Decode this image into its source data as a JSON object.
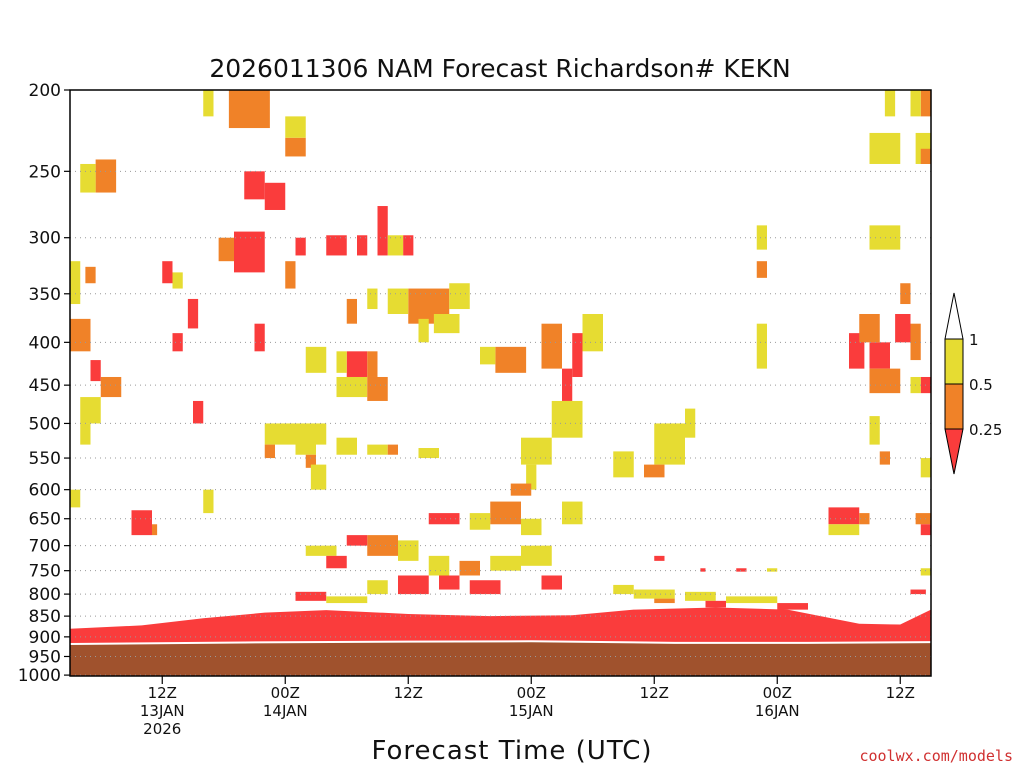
{
  "chart_data": {
    "type": "heatmap",
    "title": "2026011306 NAM Forecast Richardson# KEKN",
    "xlabel": "Forecast Time (UTC)",
    "ylabel": "",
    "ylim": [
      1000,
      200
    ],
    "xlim_hours": [
      3,
      87
    ],
    "grid": "dotted horizontal at labeled pressure levels",
    "y_ticks": [
      "200",
      "250",
      "300",
      "350",
      "400",
      "450",
      "500",
      "550",
      "600",
      "650",
      "700",
      "750",
      "800",
      "850",
      "900",
      "950",
      "1000"
    ],
    "x_ticks": [
      {
        "hour": 12,
        "line1": "12Z",
        "line2": "13JAN",
        "line3": "2026"
      },
      {
        "hour": 24,
        "line1": "00Z",
        "line2": "14JAN",
        "line3": ""
      },
      {
        "hour": 36,
        "line1": "12Z",
        "line2": "",
        "line3": ""
      },
      {
        "hour": 48,
        "line1": "00Z",
        "line2": "15JAN",
        "line3": ""
      },
      {
        "hour": 60,
        "line1": "12Z",
        "line2": "",
        "line3": ""
      },
      {
        "hour": 72,
        "line1": "00Z",
        "line2": "16JAN",
        "line3": ""
      },
      {
        "hour": 84,
        "line1": "12Z",
        "line2": "",
        "line3": ""
      }
    ],
    "legend": {
      "placement": "right",
      "entries": [
        {
          "label": "1",
          "color": "#ffffff"
        },
        {
          "label": "0.5",
          "color": "#e6dc32"
        },
        {
          "label": "0.25",
          "color": "#f08228"
        },
        {
          "label": "",
          "color": "#fa3c3c"
        }
      ]
    },
    "colors": {
      "ri_lt_0_25": "#fa3c3c",
      "ri_0_25_0_5": "#f08228",
      "ri_0_5_1": "#e6dc32",
      "ground": "#a0522d"
    },
    "surface_pressure": [
      {
        "hour": 3,
        "p": 918
      },
      {
        "hour": 20,
        "p": 914
      },
      {
        "hour": 36,
        "p": 912
      },
      {
        "hour": 48,
        "p": 911
      },
      {
        "hour": 62,
        "p": 915
      },
      {
        "hour": 75,
        "p": 915
      },
      {
        "hour": 87,
        "p": 913
      }
    ],
    "low_level_red_top": [
      {
        "hour": 3,
        "p": 880
      },
      {
        "hour": 10,
        "p": 872
      },
      {
        "hour": 16,
        "p": 855
      },
      {
        "hour": 22,
        "p": 842
      },
      {
        "hour": 28,
        "p": 836
      },
      {
        "hour": 36,
        "p": 845
      },
      {
        "hour": 44,
        "p": 850
      },
      {
        "hour": 52,
        "p": 848
      },
      {
        "hour": 58,
        "p": 835
      },
      {
        "hour": 66,
        "p": 830
      },
      {
        "hour": 73,
        "p": 835
      },
      {
        "hour": 80,
        "p": 868
      },
      {
        "hour": 84,
        "p": 870
      },
      {
        "hour": 87,
        "p": 835
      }
    ],
    "cells": [
      {
        "h0": 18.5,
        "h1": 22.5,
        "p0": 200,
        "p1": 222,
        "cat": "ri_0_25_0_5"
      },
      {
        "h0": 22.0,
        "h1": 24.0,
        "p0": 258,
        "p1": 278,
        "cat": "ri_lt_0_25"
      },
      {
        "h0": 20.0,
        "h1": 22.0,
        "p0": 250,
        "p1": 270,
        "cat": "ri_lt_0_25"
      },
      {
        "h0": 19.0,
        "h1": 22.0,
        "p0": 295,
        "p1": 330,
        "cat": "ri_lt_0_25"
      },
      {
        "h0": 17.5,
        "h1": 19.0,
        "p0": 300,
        "p1": 320,
        "cat": "ri_0_25_0_5"
      },
      {
        "h0": 5.5,
        "h1": 7.5,
        "p0": 242,
        "p1": 265,
        "cat": "ri_0_25_0_5"
      },
      {
        "h0": 4.0,
        "h1": 5.5,
        "p0": 245,
        "p1": 265,
        "cat": "ri_0_5_1"
      },
      {
        "h0": 24.0,
        "h1": 26.0,
        "p0": 228,
        "p1": 240,
        "cat": "ri_0_25_0_5"
      },
      {
        "h0": 24.0,
        "h1": 26.0,
        "p0": 215,
        "p1": 228,
        "cat": "ri_0_5_1"
      },
      {
        "h0": 16.0,
        "h1": 17.0,
        "p0": 200,
        "p1": 215,
        "cat": "ri_0_5_1"
      },
      {
        "h0": 25.0,
        "h1": 26.0,
        "p0": 300,
        "p1": 315,
        "cat": "ri_lt_0_25"
      },
      {
        "h0": 24.0,
        "h1": 25.0,
        "p0": 320,
        "p1": 345,
        "cat": "ri_0_25_0_5"
      },
      {
        "h0": 28.0,
        "h1": 30.0,
        "p0": 298,
        "p1": 315,
        "cat": "ri_lt_0_25"
      },
      {
        "h0": 31.0,
        "h1": 32.0,
        "p0": 298,
        "p1": 315,
        "cat": "ri_lt_0_25"
      },
      {
        "h0": 33.0,
        "h1": 34.0,
        "p0": 275,
        "p1": 315,
        "cat": "ri_lt_0_25"
      },
      {
        "h0": 35.5,
        "h1": 36.5,
        "p0": 298,
        "p1": 315,
        "cat": "ri_lt_0_25"
      },
      {
        "h0": 34.0,
        "h1": 35.5,
        "p0": 298,
        "p1": 315,
        "cat": "ri_0_5_1"
      },
      {
        "h0": 32.0,
        "h1": 33.0,
        "p0": 345,
        "p1": 365,
        "cat": "ri_0_5_1"
      },
      {
        "h0": 30.0,
        "h1": 31.0,
        "p0": 355,
        "p1": 380,
        "cat": "ri_0_25_0_5"
      },
      {
        "h0": 36.0,
        "h1": 40.0,
        "p0": 345,
        "p1": 380,
        "cat": "ri_0_25_0_5"
      },
      {
        "h0": 34.0,
        "h1": 36.0,
        "p0": 345,
        "p1": 370,
        "cat": "ri_0_5_1"
      },
      {
        "h0": 40.0,
        "h1": 42.0,
        "p0": 340,
        "p1": 365,
        "cat": "ri_0_5_1"
      },
      {
        "h0": 37.0,
        "h1": 38.0,
        "p0": 375,
        "p1": 400,
        "cat": "ri_0_5_1"
      },
      {
        "h0": 38.5,
        "h1": 41.0,
        "p0": 370,
        "p1": 390,
        "cat": "ri_0_5_1"
      },
      {
        "h0": 44.5,
        "h1": 47.5,
        "p0": 405,
        "p1": 435,
        "cat": "ri_0_25_0_5"
      },
      {
        "h0": 43.0,
        "h1": 44.5,
        "p0": 405,
        "p1": 425,
        "cat": "ri_0_5_1"
      },
      {
        "h0": 26.0,
        "h1": 28.0,
        "p0": 405,
        "p1": 435,
        "cat": "ri_0_5_1"
      },
      {
        "h0": 30.0,
        "h1": 32.0,
        "p0": 410,
        "p1": 440,
        "cat": "ri_lt_0_25"
      },
      {
        "h0": 29.0,
        "h1": 30.0,
        "p0": 410,
        "p1": 435,
        "cat": "ri_0_5_1"
      },
      {
        "h0": 32.0,
        "h1": 33.0,
        "p0": 410,
        "p1": 440,
        "cat": "ri_0_25_0_5"
      },
      {
        "h0": 29.0,
        "h1": 32.0,
        "p0": 440,
        "p1": 465,
        "cat": "ri_0_5_1"
      },
      {
        "h0": 32.0,
        "h1": 34.0,
        "p0": 440,
        "p1": 470,
        "cat": "ri_0_25_0_5"
      },
      {
        "h0": 3.0,
        "h1": 5.0,
        "p0": 375,
        "p1": 410,
        "cat": "ri_0_25_0_5"
      },
      {
        "h0": 3.0,
        "h1": 4.0,
        "p0": 320,
        "p1": 360,
        "cat": "ri_0_5_1"
      },
      {
        "h0": 4.5,
        "h1": 5.5,
        "p0": 325,
        "p1": 340,
        "cat": "ri_0_25_0_5"
      },
      {
        "h0": 5.0,
        "h1": 6.0,
        "p0": 420,
        "p1": 445,
        "cat": "ri_lt_0_25"
      },
      {
        "h0": 6.0,
        "h1": 8.0,
        "p0": 440,
        "p1": 465,
        "cat": "ri_0_25_0_5"
      },
      {
        "h0": 4.0,
        "h1": 6.0,
        "p0": 465,
        "p1": 500,
        "cat": "ri_0_5_1"
      },
      {
        "h0": 4.0,
        "h1": 5.0,
        "p0": 500,
        "p1": 530,
        "cat": "ri_0_5_1"
      },
      {
        "h0": 12.0,
        "h1": 13.0,
        "p0": 320,
        "p1": 340,
        "cat": "ri_lt_0_25"
      },
      {
        "h0": 13.0,
        "h1": 14.0,
        "p0": 330,
        "p1": 345,
        "cat": "ri_0_5_1"
      },
      {
        "h0": 14.5,
        "h1": 15.5,
        "p0": 355,
        "p1": 385,
        "cat": "ri_lt_0_25"
      },
      {
        "h0": 13.0,
        "h1": 14.0,
        "p0": 390,
        "p1": 410,
        "cat": "ri_lt_0_25"
      },
      {
        "h0": 15.0,
        "h1": 16.0,
        "p0": 470,
        "p1": 500,
        "cat": "ri_lt_0_25"
      },
      {
        "h0": 21.0,
        "h1": 22.0,
        "p0": 380,
        "p1": 410,
        "cat": "ri_lt_0_25"
      },
      {
        "h0": 22.0,
        "h1": 28.0,
        "p0": 500,
        "p1": 530,
        "cat": "ri_0_5_1"
      },
      {
        "h0": 22.0,
        "h1": 23.0,
        "p0": 530,
        "p1": 550,
        "cat": "ri_0_25_0_5"
      },
      {
        "h0": 25.0,
        "h1": 27.0,
        "p0": 525,
        "p1": 545,
        "cat": "ri_0_5_1"
      },
      {
        "h0": 26.0,
        "h1": 27.0,
        "p0": 545,
        "p1": 565,
        "cat": "ri_0_25_0_5"
      },
      {
        "h0": 26.5,
        "h1": 28.0,
        "p0": 560,
        "p1": 600,
        "cat": "ri_0_5_1"
      },
      {
        "h0": 29.0,
        "h1": 31.0,
        "p0": 520,
        "p1": 545,
        "cat": "ri_0_5_1"
      },
      {
        "h0": 32.0,
        "h1": 34.0,
        "p0": 530,
        "p1": 545,
        "cat": "ri_0_5_1"
      },
      {
        "h0": 34.0,
        "h1": 35.0,
        "p0": 530,
        "p1": 545,
        "cat": "ri_0_25_0_5"
      },
      {
        "h0": 37.0,
        "h1": 39.0,
        "p0": 535,
        "p1": 550,
        "cat": "ri_0_5_1"
      },
      {
        "h0": 47.0,
        "h1": 50.0,
        "p0": 520,
        "p1": 560,
        "cat": "ri_0_5_1"
      },
      {
        "h0": 47.5,
        "h1": 48.5,
        "p0": 560,
        "p1": 600,
        "cat": "ri_0_5_1"
      },
      {
        "h0": 46.0,
        "h1": 48.0,
        "p0": 590,
        "p1": 610,
        "cat": "ri_0_25_0_5"
      },
      {
        "h0": 49.0,
        "h1": 51.0,
        "p0": 380,
        "p1": 430,
        "cat": "ri_0_25_0_5"
      },
      {
        "h0": 51.0,
        "h1": 52.0,
        "p0": 430,
        "p1": 470,
        "cat": "ri_lt_0_25"
      },
      {
        "h0": 52.0,
        "h1": 53.0,
        "p0": 390,
        "p1": 440,
        "cat": "ri_lt_0_25"
      },
      {
        "h0": 53.0,
        "h1": 55.0,
        "p0": 370,
        "p1": 410,
        "cat": "ri_0_5_1"
      },
      {
        "h0": 50.0,
        "h1": 53.0,
        "p0": 470,
        "p1": 520,
        "cat": "ri_0_5_1"
      },
      {
        "h0": 51.0,
        "h1": 53.0,
        "p0": 620,
        "p1": 660,
        "cat": "ri_0_5_1"
      },
      {
        "h0": 44.0,
        "h1": 47.0,
        "p0": 620,
        "p1": 660,
        "cat": "ri_0_25_0_5"
      },
      {
        "h0": 42.0,
        "h1": 44.0,
        "p0": 640,
        "p1": 670,
        "cat": "ri_0_5_1"
      },
      {
        "h0": 47.0,
        "h1": 49.0,
        "p0": 650,
        "p1": 680,
        "cat": "ri_0_5_1"
      },
      {
        "h0": 56.0,
        "h1": 58.0,
        "p0": 540,
        "p1": 580,
        "cat": "ri_0_5_1"
      },
      {
        "h0": 60.0,
        "h1": 63.0,
        "p0": 500,
        "p1": 560,
        "cat": "ri_0_5_1"
      },
      {
        "h0": 59.0,
        "h1": 61.0,
        "p0": 560,
        "p1": 580,
        "cat": "ri_0_25_0_5"
      },
      {
        "h0": 63.0,
        "h1": 64.0,
        "p0": 480,
        "p1": 520,
        "cat": "ri_0_5_1"
      },
      {
        "h0": 70.0,
        "h1": 71.0,
        "p0": 290,
        "p1": 310,
        "cat": "ri_0_5_1"
      },
      {
        "h0": 70.0,
        "h1": 71.0,
        "p0": 320,
        "p1": 335,
        "cat": "ri_0_25_0_5"
      },
      {
        "h0": 70.0,
        "h1": 71.0,
        "p0": 380,
        "p1": 430,
        "cat": "ri_0_5_1"
      },
      {
        "h0": 77.0,
        "h1": 80.0,
        "p0": 630,
        "p1": 660,
        "cat": "ri_lt_0_25"
      },
      {
        "h0": 80.0,
        "h1": 81.0,
        "p0": 640,
        "p1": 660,
        "cat": "ri_0_25_0_5"
      },
      {
        "h0": 77.0,
        "h1": 80.0,
        "p0": 660,
        "p1": 680,
        "cat": "ri_0_5_1"
      },
      {
        "h0": 79.0,
        "h1": 80.5,
        "p0": 390,
        "p1": 430,
        "cat": "ri_lt_0_25"
      },
      {
        "h0": 81.0,
        "h1": 83.0,
        "p0": 400,
        "p1": 430,
        "cat": "ri_lt_0_25"
      },
      {
        "h0": 81.0,
        "h1": 84.0,
        "p0": 430,
        "p1": 460,
        "cat": "ri_0_25_0_5"
      },
      {
        "h0": 80.0,
        "h1": 82.0,
        "p0": 370,
        "p1": 400,
        "cat": "ri_0_25_0_5"
      },
      {
        "h0": 83.5,
        "h1": 85.0,
        "p0": 370,
        "p1": 400,
        "cat": "ri_lt_0_25"
      },
      {
        "h0": 85.0,
        "h1": 86.0,
        "p0": 380,
        "p1": 420,
        "cat": "ri_0_25_0_5"
      },
      {
        "h0": 84.0,
        "h1": 85.0,
        "p0": 340,
        "p1": 360,
        "cat": "ri_0_25_0_5"
      },
      {
        "h0": 86.0,
        "h1": 87.0,
        "p0": 440,
        "p1": 460,
        "cat": "ri_lt_0_25"
      },
      {
        "h0": 85.0,
        "h1": 86.0,
        "p0": 440,
        "p1": 460,
        "cat": "ri_0_5_1"
      },
      {
        "h0": 81.0,
        "h1": 82.0,
        "p0": 490,
        "p1": 530,
        "cat": "ri_0_5_1"
      },
      {
        "h0": 82.0,
        "h1": 83.0,
        "p0": 540,
        "p1": 560,
        "cat": "ri_0_25_0_5"
      },
      {
        "h0": 85.5,
        "h1": 87.0,
        "p0": 640,
        "p1": 660,
        "cat": "ri_0_25_0_5"
      },
      {
        "h0": 86.0,
        "h1": 87.0,
        "p0": 660,
        "p1": 680,
        "cat": "ri_lt_0_25"
      },
      {
        "h0": 86.0,
        "h1": 87.0,
        "p0": 550,
        "p1": 580,
        "cat": "ri_0_5_1"
      },
      {
        "h0": 86.0,
        "h1": 87.0,
        "p0": 200,
        "p1": 215,
        "cat": "ri_0_25_0_5"
      },
      {
        "h0": 85.0,
        "h1": 86.0,
        "p0": 200,
        "p1": 215,
        "cat": "ri_0_5_1"
      },
      {
        "h0": 82.5,
        "h1": 83.5,
        "p0": 200,
        "p1": 215,
        "cat": "ri_0_5_1"
      },
      {
        "h0": 81.0,
        "h1": 84.0,
        "p0": 225,
        "p1": 245,
        "cat": "ri_0_5_1"
      },
      {
        "h0": 85.5,
        "h1": 87.0,
        "p0": 225,
        "p1": 245,
        "cat": "ri_0_5_1"
      },
      {
        "h0": 86.0,
        "h1": 87.0,
        "p0": 235,
        "p1": 245,
        "cat": "ri_0_25_0_5"
      },
      {
        "h0": 81.0,
        "h1": 84.0,
        "p0": 290,
        "p1": 310,
        "cat": "ri_0_5_1"
      },
      {
        "h0": 9.0,
        "h1": 11.0,
        "p0": 635,
        "p1": 680,
        "cat": "ri_lt_0_25"
      },
      {
        "h0": 11.0,
        "h1": 11.5,
        "p0": 660,
        "p1": 680,
        "cat": "ri_0_25_0_5"
      },
      {
        "h0": 16.0,
        "h1": 17.0,
        "p0": 600,
        "p1": 640,
        "cat": "ri_0_5_1"
      },
      {
        "h0": 3.0,
        "h1": 4.0,
        "p0": 600,
        "p1": 630,
        "cat": "ri_0_5_1"
      },
      {
        "h0": 32.0,
        "h1": 35.0,
        "p0": 680,
        "p1": 720,
        "cat": "ri_0_25_0_5"
      },
      {
        "h0": 30.0,
        "h1": 32.0,
        "p0": 680,
        "p1": 700,
        "cat": "ri_lt_0_25"
      },
      {
        "h0": 35.0,
        "h1": 37.0,
        "p0": 690,
        "p1": 730,
        "cat": "ri_0_5_1"
      },
      {
        "h0": 38.0,
        "h1": 41.0,
        "p0": 640,
        "p1": 660,
        "cat": "ri_lt_0_25"
      },
      {
        "h0": 38.0,
        "h1": 40.0,
        "p0": 720,
        "p1": 760,
        "cat": "ri_0_5_1"
      },
      {
        "h0": 39.0,
        "h1": 41.0,
        "p0": 760,
        "p1": 790,
        "cat": "ri_lt_0_25"
      },
      {
        "h0": 41.0,
        "h1": 43.0,
        "p0": 730,
        "p1": 760,
        "cat": "ri_0_25_0_5"
      },
      {
        "h0": 44.0,
        "h1": 47.0,
        "p0": 720,
        "p1": 750,
        "cat": "ri_0_5_1"
      },
      {
        "h0": 47.0,
        "h1": 50.0,
        "p0": 700,
        "p1": 740,
        "cat": "ri_0_5_1"
      },
      {
        "h0": 49.0,
        "h1": 51.0,
        "p0": 760,
        "p1": 790,
        "cat": "ri_lt_0_25"
      },
      {
        "h0": 42.0,
        "h1": 45.0,
        "p0": 770,
        "p1": 800,
        "cat": "ri_lt_0_25"
      },
      {
        "h0": 35.0,
        "h1": 38.0,
        "p0": 760,
        "p1": 800,
        "cat": "ri_lt_0_25"
      },
      {
        "h0": 32.0,
        "h1": 34.0,
        "p0": 770,
        "p1": 800,
        "cat": "ri_0_5_1"
      },
      {
        "h0": 26.0,
        "h1": 29.0,
        "p0": 700,
        "p1": 720,
        "cat": "ri_0_5_1"
      },
      {
        "h0": 28.0,
        "h1": 30.0,
        "p0": 720,
        "p1": 745,
        "cat": "ri_lt_0_25"
      },
      {
        "h0": 56.0,
        "h1": 58.0,
        "p0": 780,
        "p1": 800,
        "cat": "ri_0_5_1"
      },
      {
        "h0": 58.0,
        "h1": 62.0,
        "p0": 790,
        "p1": 810,
        "cat": "ri_0_5_1"
      },
      {
        "h0": 63.0,
        "h1": 66.0,
        "p0": 795,
        "p1": 815,
        "cat": "ri_0_5_1"
      },
      {
        "h0": 67.0,
        "h1": 72.0,
        "p0": 805,
        "p1": 820,
        "cat": "ri_0_5_1"
      },
      {
        "h0": 60.0,
        "h1": 62.0,
        "p0": 810,
        "p1": 820,
        "cat": "ri_0_25_0_5"
      },
      {
        "h0": 65.0,
        "h1": 67.0,
        "p0": 815,
        "p1": 830,
        "cat": "ri_lt_0_25"
      },
      {
        "h0": 72.0,
        "h1": 75.0,
        "p0": 820,
        "p1": 835,
        "cat": "ri_lt_0_25"
      },
      {
        "h0": 25.0,
        "h1": 28.0,
        "p0": 795,
        "p1": 815,
        "cat": "ri_lt_0_25"
      },
      {
        "h0": 28.0,
        "h1": 32.0,
        "p0": 805,
        "p1": 820,
        "cat": "ri_0_5_1"
      },
      {
        "h0": 60.0,
        "h1": 61.0,
        "p0": 720,
        "p1": 730,
        "cat": "ri_lt_0_25"
      },
      {
        "h0": 64.5,
        "h1": 65.0,
        "p0": 745,
        "p1": 752,
        "cat": "ri_lt_0_25"
      },
      {
        "h0": 68.0,
        "h1": 69.0,
        "p0": 745,
        "p1": 752,
        "cat": "ri_lt_0_25"
      },
      {
        "h0": 71.0,
        "h1": 72.0,
        "p0": 745,
        "p1": 752,
        "cat": "ri_0_5_1"
      },
      {
        "h0": 86.0,
        "h1": 87.0,
        "p0": 745,
        "p1": 760,
        "cat": "ri_0_5_1"
      },
      {
        "h0": 85.0,
        "h1": 86.5,
        "p0": 790,
        "p1": 800,
        "cat": "ri_lt_0_25"
      }
    ]
  },
  "credit": "coolwx.com/models"
}
